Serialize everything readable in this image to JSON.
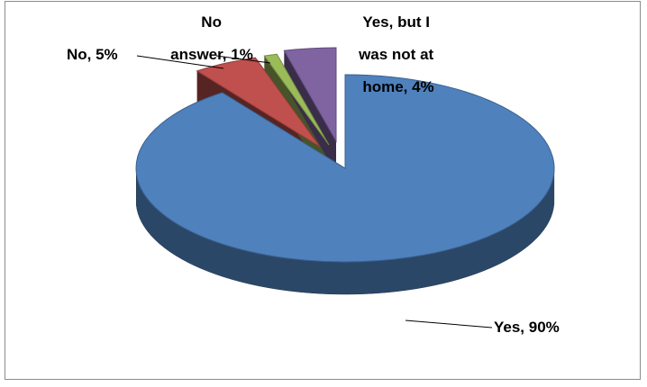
{
  "chart_data": {
    "type": "pie",
    "style": "3d-exploded",
    "title": "",
    "legend": "none",
    "slices": [
      {
        "label": "Yes",
        "value": 90,
        "color": "#4f81bd"
      },
      {
        "label": "No",
        "value": 5,
        "color": "#c0504d"
      },
      {
        "label": "No answer",
        "value": 1,
        "color": "#9bbb59"
      },
      {
        "label": "Yes, but I was not at home",
        "value": 4,
        "color": "#8064a2"
      }
    ],
    "data_labels": {
      "yes": [
        "Yes, 90%"
      ],
      "no": [
        "No, 5%"
      ],
      "no_answer": [
        "No",
        "answer, 1%"
      ],
      "not_home": [
        "Yes, but I",
        "was not at",
        "home, 4%"
      ]
    }
  }
}
